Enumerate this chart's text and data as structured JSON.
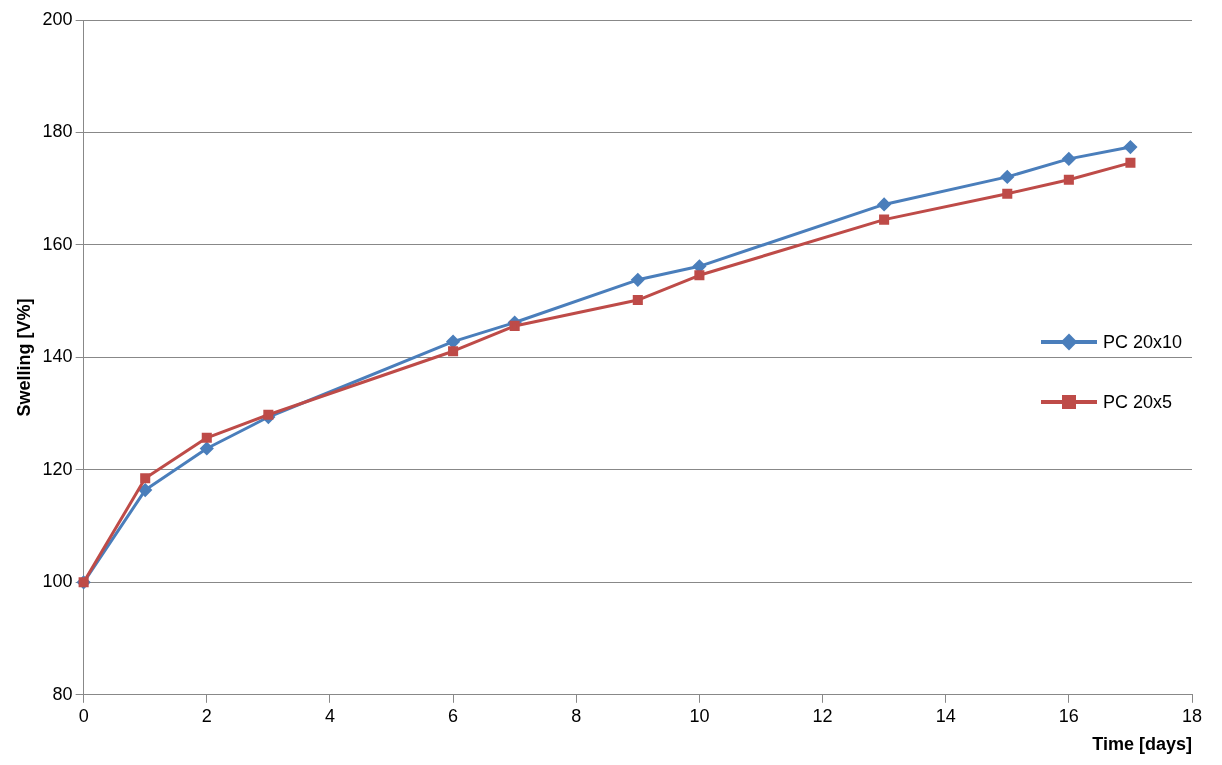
{
  "chart_data": {
    "type": "line",
    "xlabel": "Time [days]",
    "ylabel": "Swelling [V%]",
    "x": [
      0,
      1,
      2,
      3,
      6,
      7,
      9,
      10,
      13,
      15,
      16,
      17
    ],
    "series": [
      {
        "name": "PC 20x10",
        "color": "#4a7ebb",
        "marker": "diamond",
        "values": [
          100,
          116.4,
          123.8,
          129.4,
          142.8,
          146.2,
          153.8,
          156.2,
          167.2,
          172.1,
          175.3,
          177.4
        ]
      },
      {
        "name": "PC 20x5",
        "color": "#be4b48",
        "marker": "square",
        "values": [
          100,
          118.5,
          125.7,
          129.8,
          141.1,
          145.6,
          150.2,
          154.6,
          164.5,
          169.1,
          171.6,
          174.6
        ]
      }
    ],
    "xlim": [
      0,
      18
    ],
    "xticks": [
      0,
      2,
      4,
      6,
      8,
      10,
      12,
      14,
      16,
      18
    ],
    "ylim": [
      80,
      200
    ],
    "yticks": [
      80,
      100,
      120,
      140,
      160,
      180,
      200
    ],
    "grid": "y",
    "legend": "right",
    "line_style": "solid"
  }
}
